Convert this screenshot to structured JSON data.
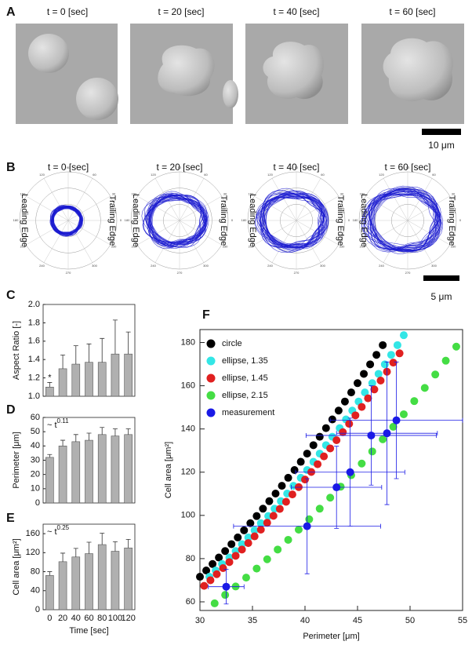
{
  "panel_labels": [
    "A",
    "B",
    "C",
    "D",
    "E",
    "F"
  ],
  "panel_a": {
    "times": [
      "t = 0 [sec]",
      "t = 20 [sec]",
      "t = 40 [sec]",
      "t = 60 [sec]"
    ],
    "scale_bar": "10 μm"
  },
  "panel_b": {
    "times": [
      "t = 0 [sec]",
      "t = 20 [sec]",
      "t = 40 [sec]",
      "t = 60 [sec]"
    ],
    "leading_edge": "Leading Edge",
    "trailing_edge": "Trailing Edge",
    "angles": [
      0,
      30,
      60,
      90,
      120,
      150,
      180,
      210,
      240,
      270,
      300,
      330
    ],
    "scale_bar": "5 μm"
  },
  "chart_data": [
    {
      "type": "bar",
      "ylabel": "Aspect Ratio [-]",
      "values": [
        1.1,
        1.3,
        1.35,
        1.37,
        1.37,
        1.46,
        1.46
      ],
      "errors": [
        0.05,
        0.15,
        0.2,
        0.2,
        0.26,
        0.37,
        0.24
      ],
      "color": "#b0b0b0",
      "annotation": "*",
      "ylim": [
        1,
        2
      ],
      "yticks": [
        {
          "value": 1,
          "label": "1.0"
        },
        1.2,
        1.4,
        1.6,
        1.8,
        {
          "value": 2,
          "label": "2.0"
        }
      ]
    },
    {
      "type": "bar",
      "ylabel": "Perimeter [μm]",
      "values": [
        32,
        40,
        43,
        44,
        48,
        47,
        48
      ],
      "errors": [
        2,
        4,
        5,
        5,
        5,
        5,
        4
      ],
      "color": "#b0b0b0",
      "annotation": "~ t",
      "annotation_exponent": "0.11",
      "ylim": [
        0,
        60
      ],
      "yticks": [
        0,
        10,
        20,
        30,
        40,
        50,
        60
      ]
    },
    {
      "type": "bar",
      "ylabel": "Cell area [μm²]",
      "xlabel": "Time [sec]",
      "categories": [
        "0",
        "20",
        "40",
        "60",
        "80",
        "100",
        "120"
      ],
      "values": [
        72,
        101,
        111,
        118,
        137,
        123,
        130
      ],
      "errors": [
        8,
        18,
        18,
        24,
        24,
        20,
        18
      ],
      "color": "#b0b0b0",
      "annotation": "~ t",
      "annotation_exponent": "0.25",
      "ylim": [
        0,
        180
      ],
      "yticks": [
        0,
        40,
        80,
        120,
        160
      ]
    },
    {
      "type": "scatter",
      "xlabel": "Perimeter [μm]",
      "ylabel": "Cell area [μm²]",
      "xlim": [
        30,
        55
      ],
      "ylim": [
        56,
        186
      ],
      "xticks": [
        30,
        35,
        40,
        45,
        50,
        55
      ],
      "yticks": [
        60,
        80,
        100,
        120,
        140,
        160,
        180
      ],
      "legend": "upper left",
      "series": [
        {
          "name": "circle",
          "color": "#000000",
          "x": [
            30,
            30.6,
            31.2,
            31.8,
            32.4,
            33,
            33.6,
            34.2,
            34.8,
            35.4,
            36,
            36.6,
            37.2,
            37.8,
            38.4,
            39,
            39.6,
            40.2,
            40.8,
            41.4,
            42,
            42.6,
            43.2,
            43.8,
            44.4,
            45,
            45.6,
            46.2,
            46.8,
            47.4
          ],
          "y": [
            71.6,
            74.5,
            77.5,
            80.5,
            83.5,
            86.7,
            89.8,
            93.1,
            96.4,
            99.7,
            103.1,
            106.6,
            110.1,
            113.7,
            117.4,
            121,
            124.8,
            128.6,
            132.5,
            136.4,
            140.4,
            144.4,
            148.5,
            152.7,
            156.9,
            161.2,
            165.5,
            169.9,
            174.3,
            178.8
          ]
        },
        {
          "name": "ellipse, 1.35",
          "color": "#33e6e6",
          "x": [
            30.9,
            31.5,
            32.1,
            32.8,
            33.4,
            34,
            34.6,
            35.2,
            35.8,
            36.5,
            37.1,
            37.7,
            38.3,
            38.9,
            39.6,
            40.2,
            40.8,
            41.4,
            42,
            42.6,
            43.3,
            43.9,
            44.5,
            45.1,
            45.7,
            46.4,
            47,
            47.6,
            48.2,
            48.8,
            49.4
          ],
          "y": [
            71.6,
            74.5,
            77.5,
            80.5,
            83.5,
            86.7,
            89.8,
            93.1,
            96.4,
            99.7,
            103.1,
            106.6,
            110.1,
            113.7,
            117.4,
            121,
            124.8,
            128.6,
            132.5,
            136.4,
            140.4,
            144.4,
            148.5,
            152.7,
            156.9,
            161.2,
            165.5,
            169.9,
            174.3,
            178.8,
            183.4
          ]
        },
        {
          "name": "ellipse, 1.45",
          "color": "#e02020",
          "x": [
            30.4,
            31,
            31.6,
            32.2,
            32.8,
            33.4,
            34,
            34.6,
            35.2,
            35.8,
            36.4,
            37,
            37.6,
            38.2,
            38.8,
            39.4,
            40,
            40.6,
            41.2,
            41.8,
            42.4,
            43,
            43.6,
            44.2,
            44.8,
            45.4,
            46,
            46.6,
            47.2,
            47.8,
            48.4,
            49
          ],
          "y": [
            67.4,
            70,
            72.8,
            75.6,
            78.4,
            81.3,
            84.2,
            87.2,
            90.3,
            93.4,
            96.6,
            99.8,
            103,
            106.3,
            109.7,
            113.1,
            116.6,
            120.1,
            123.7,
            127.3,
            131,
            134.8,
            138.5,
            142.4,
            146.3,
            150.2,
            154.2,
            158.3,
            162.4,
            166.5,
            170.7,
            175
          ]
        },
        {
          "name": "ellipse, 2.15",
          "color": "#44dd44",
          "x": [
            31.4,
            32.4,
            33.4,
            34.4,
            35.4,
            36.4,
            37.4,
            38.4,
            39.4,
            40.4,
            41.4,
            42.4,
            43.4,
            44.4,
            45.4,
            46.4,
            47.4,
            48.4,
            49.4,
            50.4,
            51.4,
            52.4,
            53.4,
            54.4
          ],
          "y": [
            59.3,
            63.2,
            67.1,
            71.2,
            75.4,
            79.7,
            84.2,
            88.7,
            93.4,
            98.2,
            103.1,
            108.2,
            113.3,
            118.6,
            124,
            129.6,
            135.2,
            141,
            146.8,
            152.9,
            159,
            165.2,
            171.6,
            178.1
          ]
        },
        {
          "name": "measurement",
          "color": "#1a1ae6",
          "x": [
            32.5,
            40.2,
            43,
            44.3,
            46.3,
            47.8,
            48.7
          ],
          "y": [
            67,
            95,
            113,
            120,
            137,
            138,
            144
          ],
          "xerr": [
            1.7,
            7,
            4.3,
            5.2,
            6.2,
            4.8,
            6.3
          ],
          "yerr": [
            8,
            22,
            19,
            25,
            23,
            33,
            27
          ]
        }
      ]
    }
  ]
}
